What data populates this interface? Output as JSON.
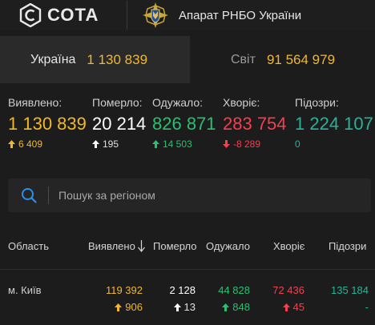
{
  "header": {
    "logo_text": "СОТА",
    "org_name": "Апарат РНБО України"
  },
  "tabs": [
    {
      "name": "Україна",
      "value": "1 130 839"
    },
    {
      "name": "Світ",
      "value": "91 564 979"
    }
  ],
  "stats": [
    {
      "label": "Виявлено:",
      "value": "1 130 839",
      "delta": "6 409",
      "color": "#f1b82d"
    },
    {
      "label": "Померло:",
      "value": "20 214",
      "delta": "195",
      "color": "#ffffff"
    },
    {
      "label": "Одужало:",
      "value": "826 871",
      "delta": "14 503",
      "color": "#2bbf72"
    },
    {
      "label": "Хворіє:",
      "value": "283 754",
      "delta": "-8 289",
      "color": "#f2404e"
    },
    {
      "label": "Підозри:",
      "value": "1 224 107",
      "delta": "0",
      "color": "#27b39a"
    }
  ],
  "search": {
    "placeholder": "Пошук за регіоном"
  },
  "table": {
    "headers": [
      "Область",
      "Виявлено",
      "Померло",
      "Одужало",
      "Хворіє",
      "Підозри"
    ],
    "rows": [
      {
        "region": "м. Київ",
        "detected": "119 392",
        "detected_delta": "906",
        "died": "2 128",
        "died_delta": "13",
        "recovered": "44 828",
        "recovered_delta": "848",
        "sick": "72 436",
        "sick_delta": "45",
        "suspect": "135 184",
        "suspect_delta": "-"
      }
    ]
  }
}
